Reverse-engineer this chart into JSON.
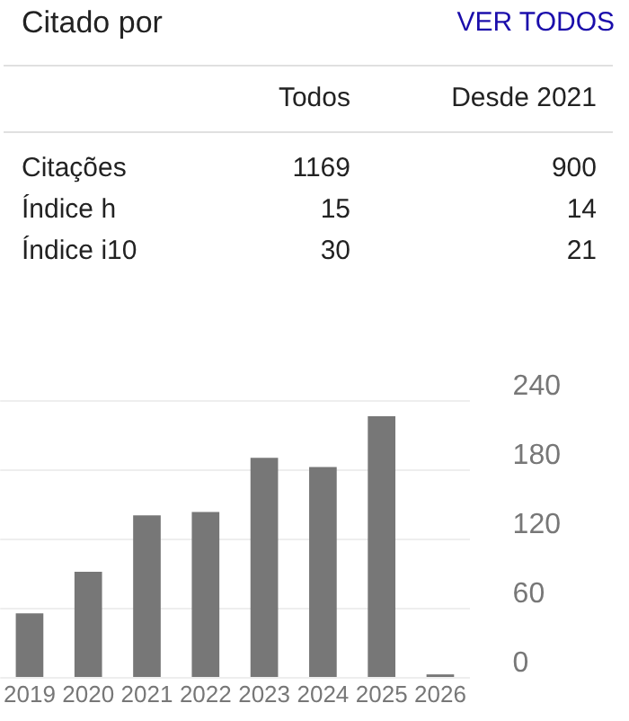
{
  "chart_data": [
    {
      "type": "other",
      "title": "Citado por",
      "annotations": [
        "VER TODOS",
        "Todos",
        "Desde 2021",
        "Citações",
        "1169",
        "900",
        "Índice h",
        "15",
        "14",
        "Índice i10",
        "30",
        "21"
      ]
    },
    {
      "type": "bar",
      "categories": [
        "2019",
        "2020",
        "2021",
        "2022",
        "2023",
        "2024",
        "2025",
        "2026"
      ],
      "values": [
        56,
        92,
        141,
        144,
        191,
        183,
        227,
        3
      ],
      "color": "#777777",
      "ylim": [
        0,
        240
      ],
      "yticks": [
        0,
        60,
        120,
        180,
        240
      ],
      "grid": "y",
      "legend": false
    }
  ]
}
